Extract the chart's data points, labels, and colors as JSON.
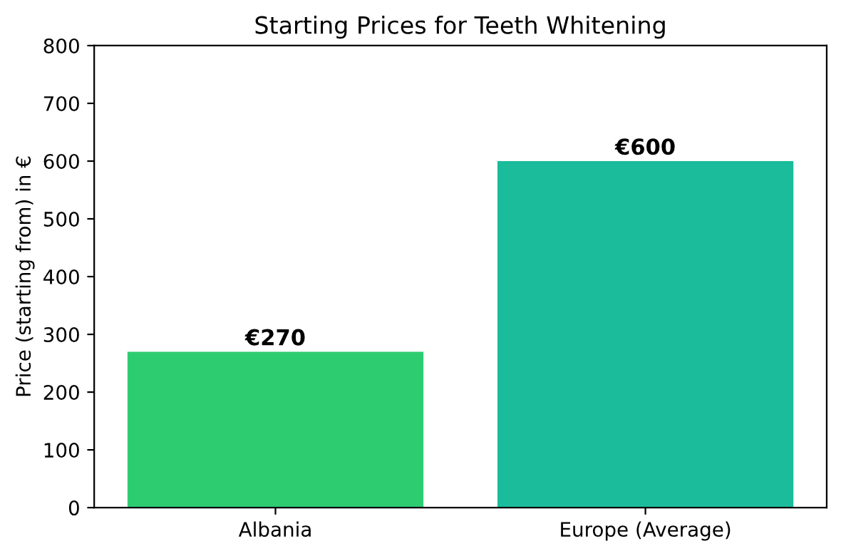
{
  "chart_data": {
    "type": "bar",
    "title": "Starting Prices for Teeth Whitening",
    "ylabel": "Price (starting from) in €",
    "categories": [
      "Albania",
      "Europe (Average)"
    ],
    "values": [
      270,
      600
    ],
    "colors": [
      "#2ecc71",
      "#1abc9c"
    ],
    "value_labels": [
      "€270",
      "€600"
    ],
    "ylim": [
      0,
      800
    ],
    "yticks": [
      0,
      100,
      200,
      300,
      400,
      500,
      600,
      700,
      800
    ],
    "grid": false
  }
}
